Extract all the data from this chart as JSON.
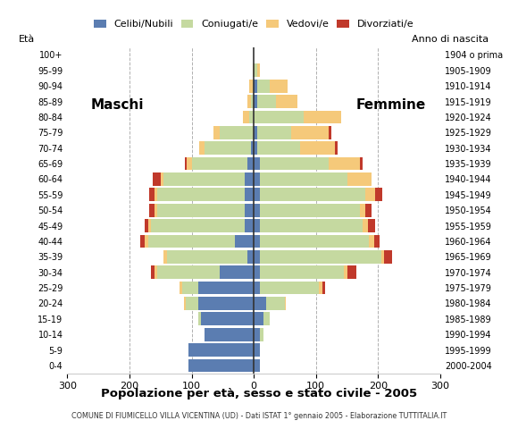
{
  "age_groups": [
    "0-4",
    "5-9",
    "10-14",
    "15-19",
    "20-24",
    "25-29",
    "30-34",
    "35-39",
    "40-44",
    "45-49",
    "50-54",
    "55-59",
    "60-64",
    "65-69",
    "70-74",
    "75-79",
    "80-84",
    "85-89",
    "90-94",
    "95-99",
    "100+"
  ],
  "birth_years": [
    "2000-2004",
    "1995-1999",
    "1990-1994",
    "1985-1989",
    "1980-1984",
    "1975-1979",
    "1970-1974",
    "1965-1969",
    "1960-1964",
    "1955-1959",
    "1950-1954",
    "1945-1949",
    "1940-1944",
    "1935-1939",
    "1930-1934",
    "1925-1929",
    "1920-1924",
    "1915-1919",
    "1910-1914",
    "1905-1909",
    "1904 o prima"
  ],
  "males": {
    "celibi": [
      105,
      105,
      80,
      85,
      90,
      90,
      55,
      10,
      30,
      15,
      15,
      15,
      15,
      10,
      5,
      0,
      0,
      0,
      0,
      0,
      0
    ],
    "coniugati": [
      0,
      0,
      0,
      5,
      20,
      25,
      100,
      130,
      140,
      150,
      140,
      140,
      130,
      90,
      75,
      55,
      8,
      5,
      2,
      0,
      0
    ],
    "vedovi": [
      0,
      0,
      0,
      0,
      2,
      5,
      5,
      5,
      5,
      5,
      5,
      5,
      5,
      8,
      8,
      10,
      10,
      5,
      5,
      2,
      0
    ],
    "divorziati": [
      0,
      0,
      0,
      0,
      0,
      0,
      5,
      0,
      8,
      5,
      8,
      8,
      12,
      3,
      0,
      0,
      0,
      0,
      0,
      0,
      0
    ]
  },
  "females": {
    "nubili": [
      10,
      10,
      10,
      15,
      20,
      10,
      10,
      10,
      10,
      10,
      10,
      10,
      10,
      10,
      5,
      5,
      0,
      5,
      5,
      0,
      0
    ],
    "coniugate": [
      0,
      0,
      5,
      10,
      30,
      95,
      135,
      195,
      175,
      165,
      160,
      170,
      140,
      110,
      70,
      55,
      80,
      30,
      20,
      5,
      0
    ],
    "vedove": [
      0,
      0,
      0,
      0,
      2,
      5,
      5,
      5,
      8,
      8,
      10,
      15,
      40,
      50,
      55,
      60,
      60,
      35,
      30,
      5,
      0
    ],
    "divorziate": [
      0,
      0,
      0,
      0,
      0,
      5,
      15,
      12,
      10,
      12,
      10,
      12,
      0,
      5,
      5,
      5,
      0,
      0,
      0,
      0,
      0
    ]
  },
  "colors": {
    "celibi": "#5b7db1",
    "coniugati": "#c5d9a0",
    "vedovi": "#f5c97a",
    "divorziati": "#c0392b"
  },
  "xlim": 300,
  "title": "Popolazione per età, sesso e stato civile - 2005",
  "subtitle": "COMUNE DI FIUMICELLO VILLA VICENTINA (UD) - Dati ISTAT 1° gennaio 2005 - Elaborazione TUTTITALIA.IT",
  "label_eta": "Età",
  "label_anno": "Anno di nascita",
  "label_maschi": "Maschi",
  "label_femmine": "Femmine",
  "bg_color": "#ffffff",
  "grid_color": "#b0b0b0"
}
